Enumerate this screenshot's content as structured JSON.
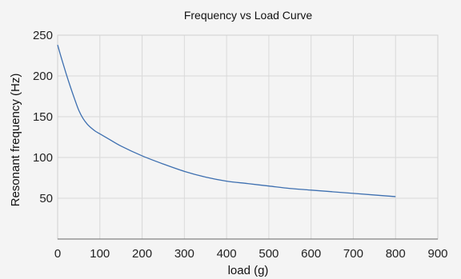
{
  "chart_data": {
    "type": "line",
    "title": "Frequency vs Load Curve",
    "xlabel": "load  (g)",
    "ylabel": "Resonant frequency  (Hz)",
    "xlim": [
      0,
      900
    ],
    "ylim": [
      0,
      250
    ],
    "xticks": [
      0,
      100,
      200,
      300,
      400,
      500,
      600,
      700,
      800,
      900
    ],
    "yticks": [
      50,
      100,
      150,
      200,
      250
    ],
    "grid": true,
    "series": [
      {
        "color": "#3d6fb0",
        "x": [
          0,
          10,
          20,
          30,
          40,
          50,
          60,
          70,
          80,
          90,
          100,
          120,
          150,
          200,
          250,
          300,
          350,
          400,
          450,
          500,
          550,
          600,
          650,
          700,
          750,
          800
        ],
        "y": [
          238,
          220,
          203,
          187,
          172,
          158,
          148,
          141,
          136,
          132,
          129,
          123,
          114,
          102,
          92,
          83,
          76,
          71,
          68,
          65,
          62,
          60,
          58,
          56,
          54,
          52
        ]
      }
    ]
  }
}
